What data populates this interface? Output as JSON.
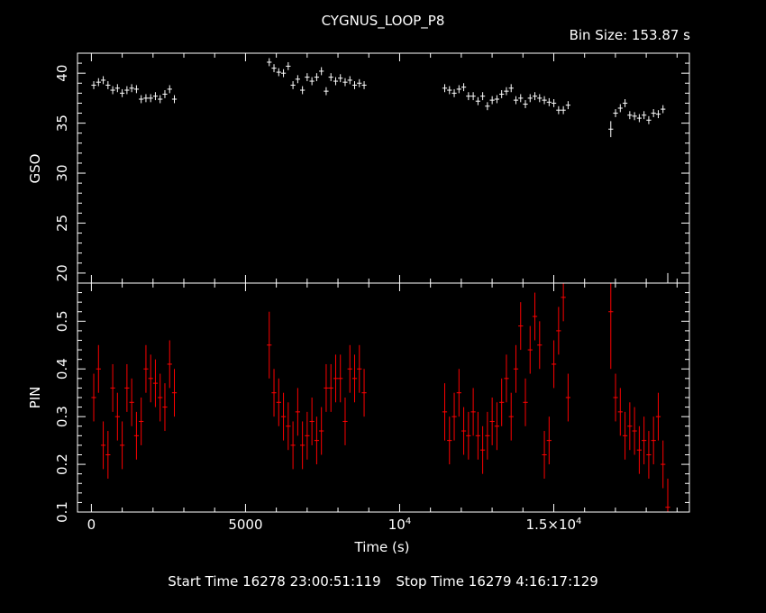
{
  "header": {
    "title": "CYGNUS_LOOP_P8",
    "bin_size": "Bin Size: 153.87 s"
  },
  "footer": {
    "start": "Start Time 16278 23:00:51:119",
    "stop": "Stop Time 16279  4:16:17:129"
  },
  "colors": {
    "background": "#000000",
    "axes": "#ffffff",
    "gso_series": "#ffffff",
    "pin_series": "#ff0000"
  },
  "chart_data": [
    {
      "type": "scatter",
      "panel": "top",
      "title": "CYGNUS_LOOP_P8",
      "xlabel": "Time (s)",
      "ylabel": "GSO",
      "xlim": [
        -450,
        19400
      ],
      "ylim": [
        19,
        42
      ],
      "x_ticks": [
        {
          "v": 0,
          "label": "0"
        },
        {
          "v": 5000,
          "label": "5000"
        },
        {
          "v": 10000,
          "label": "10",
          "sup": "4"
        },
        {
          "v": 15000,
          "label": "1.5×10",
          "sup": "4"
        }
      ],
      "y_ticks": [
        {
          "v": 20,
          "label": "20"
        },
        {
          "v": 25,
          "label": "25"
        },
        {
          "v": 30,
          "label": "30"
        },
        {
          "v": 35,
          "label": "35"
        },
        {
          "v": 40,
          "label": "40"
        }
      ],
      "series": [
        {
          "color": "#ffffff",
          "x_err": 77,
          "points": [
            [
              77,
              38.8,
              0.4
            ],
            [
              231,
              39.1,
              0.4
            ],
            [
              385,
              39.3,
              0.4
            ],
            [
              539,
              38.8,
              0.4
            ],
            [
              693,
              38.3,
              0.4
            ],
            [
              846,
              38.5,
              0.4
            ],
            [
              1000,
              38.0,
              0.4
            ],
            [
              1154,
              38.3,
              0.4
            ],
            [
              1308,
              38.5,
              0.4
            ],
            [
              1462,
              38.4,
              0.4
            ],
            [
              1616,
              37.4,
              0.4
            ],
            [
              1770,
              37.5,
              0.4
            ],
            [
              1924,
              37.5,
              0.4
            ],
            [
              2077,
              37.7,
              0.4
            ],
            [
              2231,
              37.4,
              0.4
            ],
            [
              2385,
              37.9,
              0.4
            ],
            [
              2539,
              38.4,
              0.4
            ],
            [
              2693,
              37.4,
              0.4
            ],
            [
              5770,
              41.1,
              0.4
            ],
            [
              5924,
              40.5,
              0.4
            ],
            [
              6078,
              40.1,
              0.4
            ],
            [
              6232,
              40.0,
              0.4
            ],
            [
              6386,
              40.7,
              0.4
            ],
            [
              6540,
              38.8,
              0.4
            ],
            [
              6694,
              39.4,
              0.4
            ],
            [
              6848,
              38.3,
              0.4
            ],
            [
              7001,
              39.6,
              0.4
            ],
            [
              7155,
              39.2,
              0.4
            ],
            [
              7309,
              39.6,
              0.4
            ],
            [
              7463,
              40.2,
              0.4
            ],
            [
              7617,
              38.2,
              0.4
            ],
            [
              7771,
              39.6,
              0.4
            ],
            [
              7925,
              39.2,
              0.4
            ],
            [
              8078,
              39.5,
              0.4
            ],
            [
              8232,
              39.1,
              0.4
            ],
            [
              8386,
              39.3,
              0.4
            ],
            [
              8540,
              38.8,
              0.4
            ],
            [
              8694,
              39.0,
              0.4
            ],
            [
              8848,
              38.8,
              0.4
            ],
            [
              11463,
              38.5,
              0.4
            ],
            [
              11617,
              38.3,
              0.4
            ],
            [
              11771,
              38.0,
              0.4
            ],
            [
              11925,
              38.4,
              0.4
            ],
            [
              12079,
              38.6,
              0.4
            ],
            [
              12233,
              37.7,
              0.4
            ],
            [
              12387,
              37.7,
              0.4
            ],
            [
              12541,
              37.2,
              0.4
            ],
            [
              12694,
              37.7,
              0.4
            ],
            [
              12848,
              36.7,
              0.4
            ],
            [
              13002,
              37.3,
              0.4
            ],
            [
              13156,
              37.4,
              0.4
            ],
            [
              13310,
              37.9,
              0.4
            ],
            [
              13464,
              38.2,
              0.4
            ],
            [
              13618,
              38.5,
              0.4
            ],
            [
              13772,
              37.3,
              0.4
            ],
            [
              13926,
              37.5,
              0.4
            ],
            [
              14080,
              36.9,
              0.4
            ],
            [
              14233,
              37.5,
              0.4
            ],
            [
              14387,
              37.7,
              0.4
            ],
            [
              14541,
              37.5,
              0.4
            ],
            [
              14695,
              37.3,
              0.4
            ],
            [
              14849,
              37.1,
              0.4
            ],
            [
              15003,
              37.0,
              0.4
            ],
            [
              15157,
              36.3,
              0.4
            ],
            [
              15311,
              36.3,
              0.4
            ],
            [
              15465,
              36.8,
              0.4
            ],
            [
              16850,
              34.4,
              0.8
            ],
            [
              17004,
              36.0,
              0.4
            ],
            [
              17158,
              36.5,
              0.4
            ],
            [
              17312,
              37.0,
              0.4
            ],
            [
              17466,
              35.8,
              0.4
            ],
            [
              17620,
              35.7,
              0.4
            ],
            [
              17774,
              35.5,
              0.4
            ],
            [
              17928,
              35.8,
              0.4
            ],
            [
              18082,
              35.3,
              0.4
            ],
            [
              18236,
              36.0,
              0.4
            ],
            [
              18390,
              35.9,
              0.4
            ],
            [
              18544,
              36.4,
              0.4
            ],
            [
              18698,
              19.0,
              1.0
            ]
          ]
        }
      ]
    },
    {
      "type": "scatter",
      "panel": "bottom",
      "xlabel": "Time (s)",
      "ylabel": "PIN",
      "xlim": [
        -450,
        19400
      ],
      "ylim": [
        0.1,
        0.58
      ],
      "x_ticks": [
        {
          "v": 0,
          "label": "0"
        },
        {
          "v": 5000,
          "label": "5000"
        },
        {
          "v": 10000,
          "label": "10",
          "sup": "4"
        },
        {
          "v": 15000,
          "label": "1.5×10",
          "sup": "4"
        }
      ],
      "y_ticks": [
        {
          "v": 0.1,
          "label": "0.1"
        },
        {
          "v": 0.2,
          "label": "0.2"
        },
        {
          "v": 0.3,
          "label": "0.3"
        },
        {
          "v": 0.4,
          "label": "0.4"
        },
        {
          "v": 0.5,
          "label": "0.5"
        }
      ],
      "series": [
        {
          "color": "#ff0000",
          "x_err": 77,
          "points": [
            [
              77,
              0.34,
              0.05
            ],
            [
              231,
              0.4,
              0.05
            ],
            [
              385,
              0.24,
              0.05
            ],
            [
              539,
              0.22,
              0.05
            ],
            [
              693,
              0.36,
              0.05
            ],
            [
              846,
              0.3,
              0.05
            ],
            [
              1000,
              0.24,
              0.05
            ],
            [
              1154,
              0.36,
              0.05
            ],
            [
              1308,
              0.33,
              0.05
            ],
            [
              1462,
              0.26,
              0.05
            ],
            [
              1616,
              0.29,
              0.05
            ],
            [
              1770,
              0.4,
              0.05
            ],
            [
              1924,
              0.38,
              0.05
            ],
            [
              2077,
              0.37,
              0.05
            ],
            [
              2231,
              0.34,
              0.05
            ],
            [
              2385,
              0.32,
              0.05
            ],
            [
              2539,
              0.41,
              0.05
            ],
            [
              2693,
              0.35,
              0.05
            ],
            [
              5770,
              0.45,
              0.07
            ],
            [
              5924,
              0.35,
              0.05
            ],
            [
              6078,
              0.33,
              0.05
            ],
            [
              6232,
              0.3,
              0.05
            ],
            [
              6386,
              0.28,
              0.05
            ],
            [
              6540,
              0.24,
              0.05
            ],
            [
              6694,
              0.31,
              0.05
            ],
            [
              6848,
              0.24,
              0.05
            ],
            [
              7001,
              0.26,
              0.05
            ],
            [
              7155,
              0.29,
              0.05
            ],
            [
              7309,
              0.25,
              0.05
            ],
            [
              7463,
              0.27,
              0.05
            ],
            [
              7617,
              0.36,
              0.05
            ],
            [
              7771,
              0.36,
              0.05
            ],
            [
              7925,
              0.38,
              0.05
            ],
            [
              8078,
              0.38,
              0.05
            ],
            [
              8232,
              0.29,
              0.05
            ],
            [
              8386,
              0.4,
              0.05
            ],
            [
              8540,
              0.38,
              0.05
            ],
            [
              8694,
              0.4,
              0.05
            ],
            [
              8848,
              0.35,
              0.05
            ],
            [
              11463,
              0.31,
              0.06
            ],
            [
              11617,
              0.25,
              0.05
            ],
            [
              11771,
              0.3,
              0.05
            ],
            [
              11925,
              0.35,
              0.05
            ],
            [
              12079,
              0.27,
              0.05
            ],
            [
              12233,
              0.26,
              0.05
            ],
            [
              12387,
              0.31,
              0.05
            ],
            [
              12541,
              0.26,
              0.05
            ],
            [
              12694,
              0.23,
              0.05
            ],
            [
              12848,
              0.26,
              0.05
            ],
            [
              13002,
              0.29,
              0.05
            ],
            [
              13156,
              0.28,
              0.05
            ],
            [
              13310,
              0.33,
              0.05
            ],
            [
              13464,
              0.38,
              0.05
            ],
            [
              13618,
              0.3,
              0.05
            ],
            [
              13772,
              0.4,
              0.05
            ],
            [
              13926,
              0.49,
              0.05
            ],
            [
              14080,
              0.33,
              0.05
            ],
            [
              14233,
              0.44,
              0.05
            ],
            [
              14387,
              0.51,
              0.05
            ],
            [
              14541,
              0.45,
              0.05
            ],
            [
              14695,
              0.22,
              0.05
            ],
            [
              14849,
              0.25,
              0.05
            ],
            [
              15003,
              0.41,
              0.05
            ],
            [
              15157,
              0.48,
              0.05
            ],
            [
              15311,
              0.55,
              0.05
            ],
            [
              15465,
              0.34,
              0.05
            ],
            [
              16850,
              0.52,
              0.12
            ],
            [
              17004,
              0.34,
              0.05
            ],
            [
              17158,
              0.31,
              0.05
            ],
            [
              17312,
              0.26,
              0.05
            ],
            [
              17466,
              0.28,
              0.05
            ],
            [
              17620,
              0.27,
              0.05
            ],
            [
              17774,
              0.23,
              0.05
            ],
            [
              17928,
              0.25,
              0.05
            ],
            [
              18082,
              0.22,
              0.05
            ],
            [
              18236,
              0.25,
              0.05
            ],
            [
              18390,
              0.3,
              0.05
            ],
            [
              18544,
              0.2,
              0.05
            ],
            [
              18698,
              0.11,
              0.06
            ]
          ]
        }
      ]
    }
  ]
}
